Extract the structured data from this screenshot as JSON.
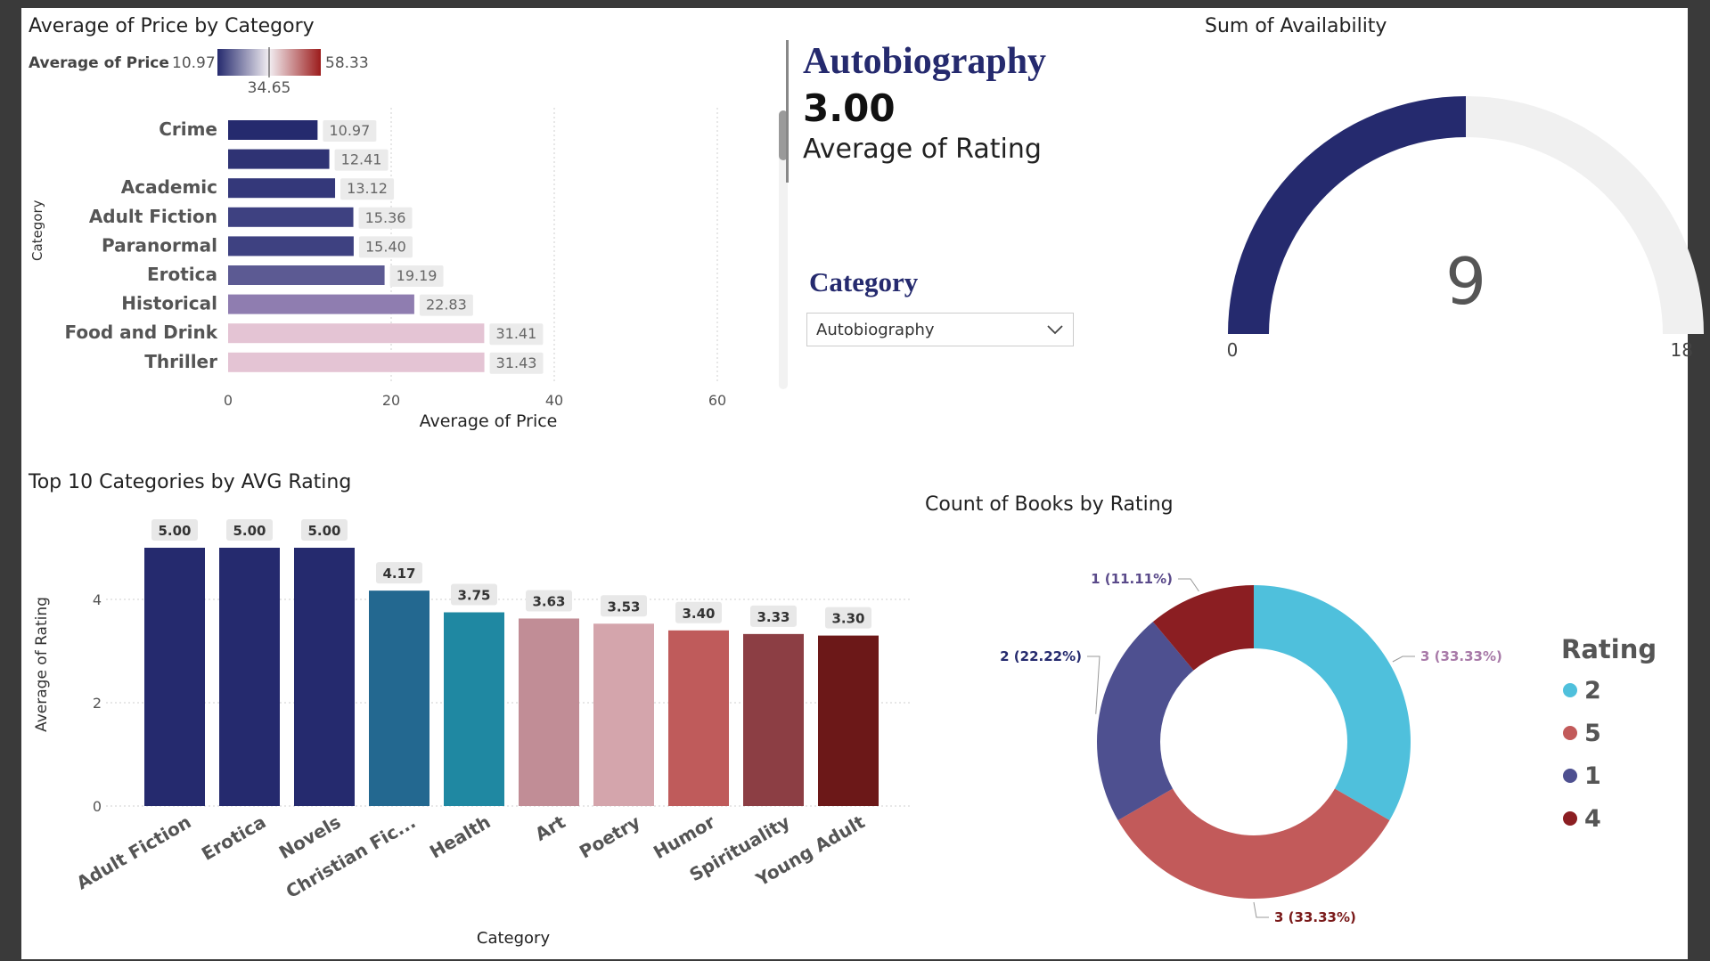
{
  "price_chart": {
    "title": "Average of Price by Category",
    "legend_label": "Average of Price",
    "legend_min": "10.97",
    "legend_mid": "34.65",
    "legend_max": "58.33",
    "ylabel": "Category",
    "xlabel": "Average of Price",
    "xticks": [
      "0",
      "20",
      "40",
      "60"
    ],
    "colors": {
      "low": "#252a6e",
      "high": "#e4c4d4"
    }
  },
  "kpi": {
    "category": "Autobiography",
    "value": "3.00",
    "label": "Average of Rating"
  },
  "slicer": {
    "title": "Category",
    "selected": "Autobiography",
    "icon": "chevron-down-icon"
  },
  "gauge_chart": {
    "title": "Sum of Availability",
    "min_label": "0",
    "max_label": "18",
    "value_label": "9",
    "colors": {
      "fill": "#252a6e",
      "track": "#f0f0f0"
    }
  },
  "rating_chart": {
    "title": "Top 10 Categories by AVG Rating",
    "ylabel": "Average of Rating",
    "xlabel": "Category",
    "yticks": [
      "0",
      "2",
      "4"
    ]
  },
  "donut_chart": {
    "title": "Count of Books by Rating",
    "legend_title": "Rating"
  },
  "chart_data": [
    {
      "type": "bar",
      "orientation": "horizontal",
      "categories": [
        "Crime",
        "",
        "Academic",
        "Adult Fiction",
        "Paranormal",
        "Erotica",
        "Historical",
        "Food and Drink",
        "Thriller"
      ],
      "values": [
        10.97,
        12.41,
        13.12,
        15.36,
        15.4,
        19.19,
        22.83,
        31.41,
        31.43
      ],
      "value_labels": [
        "10.97",
        "12.41",
        "13.12",
        "15.36",
        "15.40",
        "19.19",
        "22.83",
        "31.41",
        "31.43"
      ],
      "bar_colors": [
        "#252a6e",
        "#2f3374",
        "#34387a",
        "#3e4181",
        "#3e4181",
        "#5c5a93",
        "#8f7db0",
        "#e4c4d4",
        "#e4c4d4"
      ],
      "xlim": [
        0,
        60
      ]
    },
    {
      "type": "gauge",
      "value": 9,
      "min": 0,
      "max": 18
    },
    {
      "type": "bar",
      "categories": [
        "Adult Fiction",
        "Erotica",
        "Novels",
        "Christian Fic...",
        "Health",
        "Art",
        "Poetry",
        "Humor",
        "Spirituality",
        "Young Adult"
      ],
      "values": [
        5.0,
        5.0,
        5.0,
        4.17,
        3.75,
        3.63,
        3.53,
        3.4,
        3.33,
        3.3
      ],
      "value_labels": [
        "5.00",
        "5.00",
        "5.00",
        "4.17",
        "3.75",
        "3.63",
        "3.53",
        "3.40",
        "3.33",
        "3.30"
      ],
      "bar_colors": [
        "#252a6e",
        "#252a6e",
        "#252a6e",
        "#236890",
        "#1f88a2",
        "#c18d96",
        "#d4a5ac",
        "#bf5b5b",
        "#8c3e44",
        "#6c1818"
      ],
      "ylim": [
        0,
        5
      ]
    },
    {
      "type": "pie",
      "donut": true,
      "slices": [
        {
          "name": "3",
          "value": 33.33,
          "label": "3 (33.33%)",
          "color": "#4fc0dc",
          "label_color": "#a87aa8"
        },
        {
          "name": "3",
          "value": 33.33,
          "label": "3 (33.33%)",
          "color": "#c25a5a",
          "label_color": "#7a1a1a"
        },
        {
          "name": "2",
          "value": 22.22,
          "label": "2 (22.22%)",
          "color": "#4e5090",
          "label_color": "#252a6e"
        },
        {
          "name": "1",
          "value": 11.11,
          "label": "1 (11.11%)",
          "color": "#8b1e22",
          "label_color": "#5a4a8a"
        }
      ],
      "legend": [
        {
          "name": "2",
          "color": "#4fc0dc"
        },
        {
          "name": "5",
          "color": "#c25a5a"
        },
        {
          "name": "1",
          "color": "#4e5090"
        },
        {
          "name": "4",
          "color": "#8b1e22"
        }
      ]
    }
  ]
}
